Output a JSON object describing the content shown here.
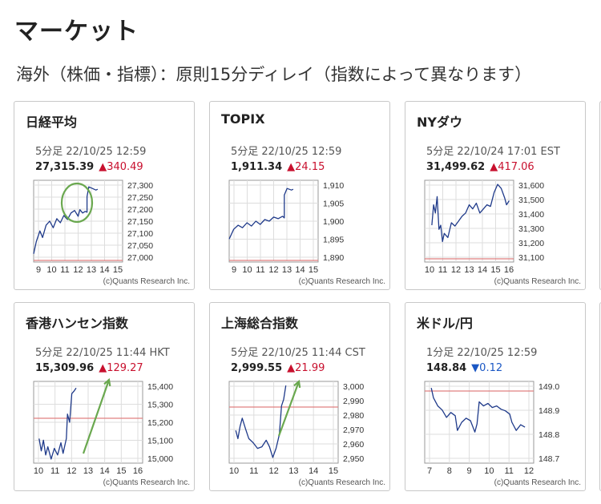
{
  "page": {
    "title": "マーケット",
    "subtitle": "海外（株価・指標）：原則15分ディレイ（指数によって異なります）"
  },
  "cards": [
    {
      "name": "日経平均",
      "meta": "5分足 22/10/25 12:59",
      "value": "27,315.39",
      "change": "▲340.49",
      "direction": "up",
      "y_ticks": [
        "27,300",
        "27,250",
        "27,200",
        "27,150",
        "27,100",
        "27,050",
        "27,000"
      ],
      "x_ticks": [
        "9",
        "10",
        "11",
        "12",
        "13",
        "14",
        "15"
      ],
      "credit": "(c)Quants Research Inc.",
      "annotation": "circle"
    },
    {
      "name": "TOPIX",
      "meta": "5分足 22/10/25 12:59",
      "value": "1,911.34",
      "change": "▲24.15",
      "direction": "up",
      "y_ticks": [
        "1,910",
        "1,905",
        "1,900",
        "1,895",
        "1,890"
      ],
      "x_ticks": [
        "9",
        "10",
        "11",
        "12",
        "13",
        "14",
        "15"
      ],
      "credit": "(c)Quants Research Inc.",
      "annotation": "none"
    },
    {
      "name": "NYダウ",
      "meta": "5分足 22/10/24 17:01 EST",
      "value": "31,499.62",
      "change": "▲417.06",
      "direction": "up",
      "y_ticks": [
        "31,600",
        "31,500",
        "31,400",
        "31,300",
        "31,200",
        "31,100"
      ],
      "x_ticks": [
        "10",
        "11",
        "12",
        "13",
        "14",
        "15",
        "16"
      ],
      "credit": "(c)Quants Research Inc.",
      "annotation": "none"
    },
    {
      "name": "香港ハンセン指数",
      "meta": "5分足 22/10/25 11:44 HKT",
      "value": "15,309.96",
      "change": "▲129.27",
      "direction": "up",
      "y_ticks": [
        "15,400",
        "15,300",
        "15,200",
        "15,100",
        "15,000"
      ],
      "x_ticks": [
        "10",
        "11",
        "12",
        "13",
        "14",
        "15",
        "16"
      ],
      "credit": "(c)Quants Research Inc.",
      "annotation": "arrow"
    },
    {
      "name": "上海総合指数",
      "meta": "5分足 22/10/25 11:44 CST",
      "value": "2,999.55",
      "change": "▲21.99",
      "direction": "up",
      "y_ticks": [
        "3,000",
        "2,990",
        "2,980",
        "2,970",
        "2,960",
        "2,950"
      ],
      "x_ticks": [
        "10",
        "11",
        "12",
        "13",
        "14",
        "15"
      ],
      "credit": "(c)Quants Research Inc.",
      "annotation": "arrow"
    },
    {
      "name": "米ドル/円",
      "meta": "1分足 22/10/25 12:59",
      "value": "148.84",
      "change": "▼0.12",
      "direction": "down",
      "y_ticks": [
        "149.0",
        "148.9",
        "148.8",
        "148.7"
      ],
      "x_ticks": [
        "7",
        "8",
        "9",
        "10",
        "11",
        "12"
      ],
      "credit": "(c)Quants Research Inc.",
      "annotation": "none"
    }
  ],
  "colors": {
    "line": "#1f3a8a",
    "prev_close_line": "#e08080",
    "annotation": "#6aa84f",
    "up": "#c8102e",
    "down": "#1a57c4"
  }
}
